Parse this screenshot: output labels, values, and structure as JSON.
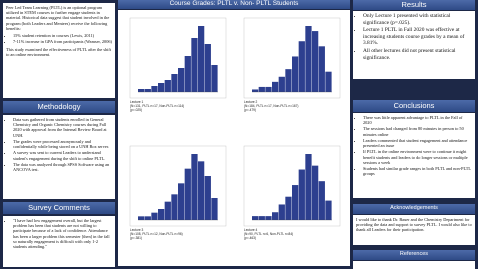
{
  "intro": {
    "text": "Peer Led Team Learning (PLTL) is an optional program utilized in STEM courses to further engage students in material. Historical data suggest that student involved in the program (both Leaders and Mentees) receive the following benefits:",
    "bullets": [
      "15% student retention in courses (Lewis, 2011)",
      "7-11% increase in GPA from participants (Wamser, 2006)"
    ],
    "closing": "This study examined the effectiveness of PLTL after the shift to an online environment."
  },
  "methodology": {
    "title": "Methodology",
    "bullets": [
      "Data was gathered from students enrolled in General Chemistry and Organic Chemistry courses during Fall 2020 with approval from the Internal Review Board at UNH.",
      "The grades were processed anonymously and confidentially while being stored on a UNH Box server.",
      "A survey was sent to current Leaders to understand student's engagement during the shift to online PLTL.",
      "The data was analyzed through SPSS Software using an ANCOVA test."
    ]
  },
  "survey": {
    "title": "Survey Comments",
    "bullets": [
      "\"I have had low engagement overall, but the largest problem has been that students are not willing to participate because of a lack of confidence. Attendance has been a larger problem this semester [then] in the fall so naturally engagement is difficult with only 1-2 students attending.\""
    ]
  },
  "charts": {
    "title": "Course Grades: PLTL v. Non- PLTL Students",
    "items": [
      {
        "caption": [
          "Lecture 1",
          "(N=131, PLTL n=17, Non-PLTL n=114)",
          "(p=.025)"
        ],
        "counts": [
          1,
          1,
          2,
          3,
          4,
          6,
          8,
          12,
          18,
          22,
          16,
          9
        ]
      },
      {
        "caption": [
          "Lecture 2",
          "(N=184, PLTL n=17, Non-PLTL n=167)",
          "(p=.479)"
        ],
        "counts": [
          1,
          2,
          2,
          4,
          6,
          9,
          14,
          20,
          26,
          24,
          18,
          8
        ]
      },
      {
        "caption": [
          "Lecture 3",
          "(N=108, PLTL n=12, Non-PLTL n=96)",
          "(p=.381)"
        ],
        "counts": [
          1,
          1,
          2,
          3,
          5,
          7,
          10,
          14,
          18,
          16,
          12,
          6
        ]
      },
      {
        "caption": [
          "Lecture 4",
          "(N=90, PLTL n=6, Non-PLTL n=84)",
          "(p=.463)"
        ],
        "counts": [
          1,
          1,
          1,
          2,
          4,
          6,
          9,
          13,
          17,
          14,
          10,
          5
        ]
      }
    ]
  },
  "results": {
    "title": "Results",
    "bullets": [
      "Only Lecture 1 presented with statistical significance (p=.025).",
      "Lecture 1 PLTL in Fall 2020 was effective at increasing students course grades by a mean of 3.81%.",
      "All other lectures did not present statistical significance."
    ]
  },
  "conclusions": {
    "title": "Conclusions",
    "bullets": [
      "There was little apparent advantage to PLTL in the Fall of 2020",
      "The sessions had changed from 80 minutes in person to 50 minutes online",
      "Leaders commented that student engagement and attendance presented an issue",
      "If PLTL in the online environment were to continue it might benefit students and leaders to do longer sessions or multiple sessions a week",
      "Students had similar grade ranges in both PLTL and non-PLTL groups"
    ]
  },
  "acknowledgements": {
    "title": "Acknowledgements",
    "text": "I would like to thank Dr. Bauer and the Chemistry Department for providing the data and support to survey PLTL. I would also like to thank all Leaders for their participation."
  },
  "references": {
    "title": "References"
  }
}
